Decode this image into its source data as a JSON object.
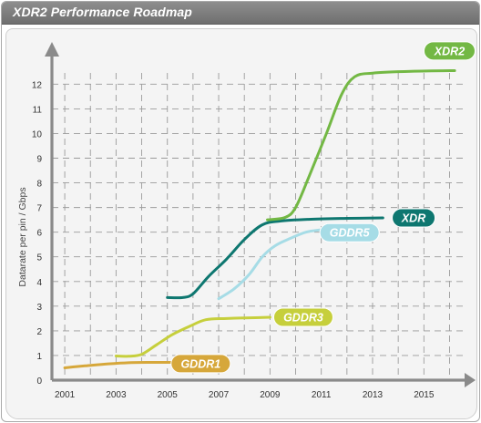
{
  "window": {
    "title": "XDR2 Performance Roadmap"
  },
  "chart_data": {
    "type": "line",
    "title": "XDR2 Performance Roadmap",
    "xlabel": "",
    "ylabel": "Datarate per pin / Gbps",
    "xlim": [
      2000.5,
      2016.8
    ],
    "ylim": [
      0,
      12.9
    ],
    "x_ticks": [
      2001,
      2003,
      2005,
      2007,
      2009,
      2011,
      2013,
      2015
    ],
    "y_ticks": [
      0,
      1,
      2,
      3,
      4,
      5,
      6,
      7,
      8,
      9,
      10,
      11,
      12
    ],
    "grid": true,
    "series": [
      {
        "name": "GDDR1",
        "color": "#d6a73a",
        "points": [
          [
            2001.0,
            0.5
          ],
          [
            2001.8,
            0.58
          ],
          [
            2002.7,
            0.66
          ],
          [
            2003.6,
            0.71
          ],
          [
            2004.5,
            0.72
          ],
          [
            2005.2,
            0.72
          ]
        ]
      },
      {
        "name": "GDDR3",
        "color": "#c6cf3c",
        "points": [
          [
            2003.0,
            0.98
          ],
          [
            2003.5,
            0.97
          ],
          [
            2004.0,
            1.05
          ],
          [
            2004.6,
            1.45
          ],
          [
            2005.2,
            1.85
          ],
          [
            2005.9,
            2.2
          ],
          [
            2006.5,
            2.45
          ],
          [
            2007.3,
            2.5
          ],
          [
            2008.0,
            2.52
          ],
          [
            2009.0,
            2.55
          ]
        ]
      },
      {
        "name": "XDR",
        "color": "#0e7770",
        "points": [
          [
            2005.0,
            3.35
          ],
          [
            2005.6,
            3.35
          ],
          [
            2006.0,
            3.5
          ],
          [
            2006.6,
            4.2
          ],
          [
            2007.3,
            4.9
          ],
          [
            2008.0,
            5.7
          ],
          [
            2008.7,
            6.3
          ],
          [
            2009.4,
            6.45
          ],
          [
            2010.5,
            6.52
          ],
          [
            2012.0,
            6.56
          ],
          [
            2013.4,
            6.58
          ]
        ]
      },
      {
        "name": "GDDR5",
        "color": "#a6dce6",
        "points": [
          [
            2007.0,
            3.3
          ],
          [
            2007.6,
            3.7
          ],
          [
            2008.2,
            4.3
          ],
          [
            2008.7,
            5.0
          ],
          [
            2009.2,
            5.45
          ],
          [
            2009.8,
            5.75
          ],
          [
            2010.4,
            6.0
          ],
          [
            2011.0,
            6.1
          ]
        ]
      },
      {
        "name": "XDR2",
        "color": "#73b844",
        "points": [
          [
            2008.9,
            6.5
          ],
          [
            2009.6,
            6.6
          ],
          [
            2010.0,
            7.0
          ],
          [
            2010.5,
            8.2
          ],
          [
            2011.2,
            10.0
          ],
          [
            2011.8,
            11.6
          ],
          [
            2012.3,
            12.3
          ],
          [
            2013.0,
            12.45
          ],
          [
            2014.5,
            12.52
          ],
          [
            2016.2,
            12.55
          ]
        ]
      }
    ],
    "labels": [
      {
        "text": "GDDR1",
        "color": "#d6a73a",
        "x": 2006.3,
        "y": 0.67
      },
      {
        "text": "GDDR3",
        "color": "#c6cf3c",
        "x": 2010.3,
        "y": 2.55
      },
      {
        "text": "GDDR5",
        "color": "#a6dce6",
        "x": 2012.1,
        "y": 5.98
      },
      {
        "text": "XDR",
        "color": "#0e7770",
        "x": 2014.6,
        "y": 6.58
      },
      {
        "text": "XDR2",
        "color": "#73b844",
        "x": 2016.0,
        "y": 13.35
      }
    ]
  }
}
